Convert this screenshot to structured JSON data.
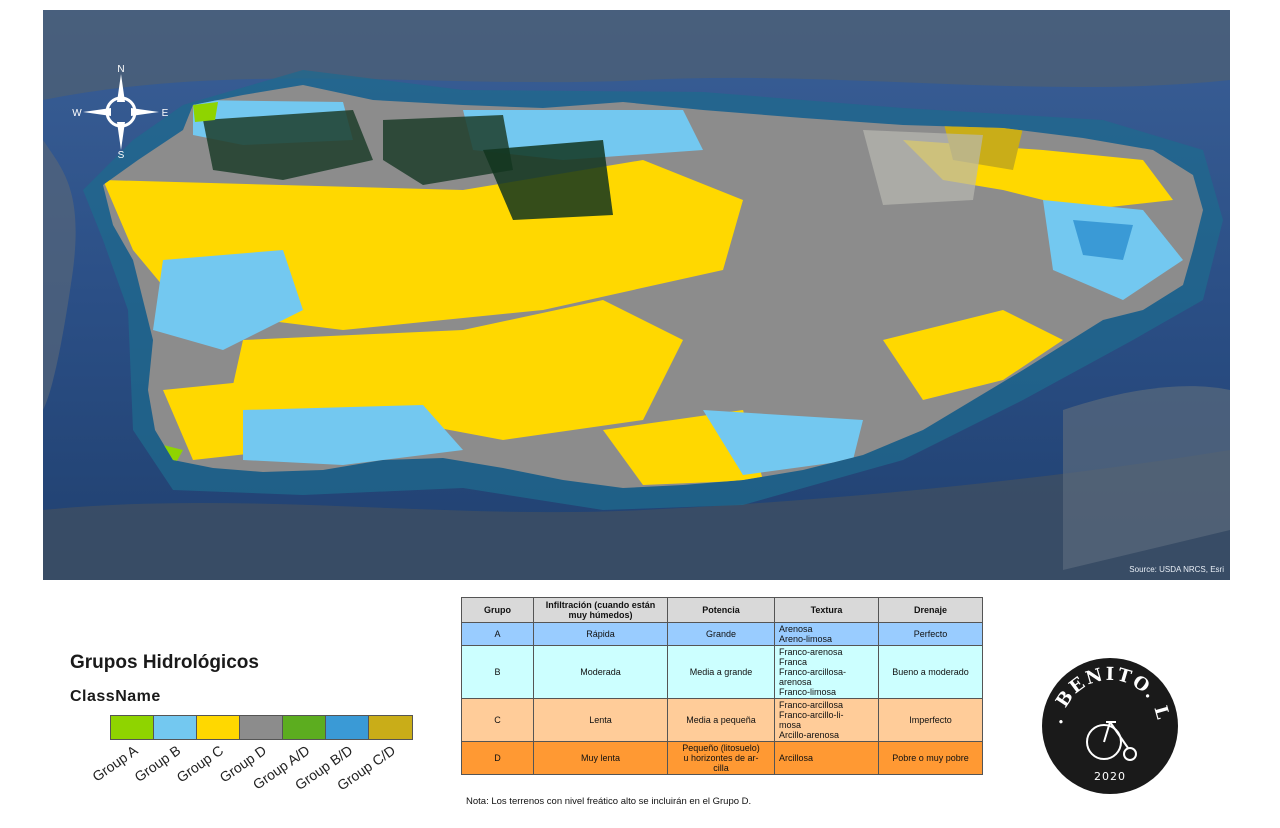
{
  "map": {
    "source": "Source: USDA NRCS, Esri",
    "compass": {
      "n": "N",
      "s": "S",
      "e": "E",
      "w": "W"
    }
  },
  "legend": {
    "title": "Grupos Hidrológicos",
    "subtitle": "ClassName",
    "items": [
      {
        "label": "Group A",
        "color": "#8fd400"
      },
      {
        "label": "Group B",
        "color": "#73c8f0"
      },
      {
        "label": "Group C",
        "color": "#ffd800"
      },
      {
        "label": "Group D",
        "color": "#8c8c8c"
      },
      {
        "label": "Group A/D",
        "color": "#5cad1f"
      },
      {
        "label": "Group B/D",
        "color": "#3a9ad6"
      },
      {
        "label": "Group C/D",
        "color": "#c9ad18"
      }
    ]
  },
  "table": {
    "headers": [
      "Grupo",
      "Infiltración (cuando están muy húmedos)",
      "Potencia",
      "Textura",
      "Drenaje"
    ],
    "rows": [
      {
        "grupo": "A",
        "infiltracion": "Rápida",
        "potencia": "Grande",
        "textura": "Arenosa\nAreno-limosa",
        "drenaje": "Perfecto",
        "color": "#99ccff"
      },
      {
        "grupo": "B",
        "infiltracion": "Moderada",
        "potencia": "Media a grande",
        "textura": "Franco-arenosa\nFranca\nFranco-arcillosa-\narenosa\nFranco-limosa",
        "drenaje": "Bueno a moderado",
        "color": "#ccffff"
      },
      {
        "grupo": "C",
        "infiltracion": "Lenta",
        "potencia": "Media a pequeña",
        "textura": "Franco-arcillosa\nFranco-arcillo-li-\nmosa\nArcillo-arenosa",
        "drenaje": "Imperfecto",
        "color": "#ffcc99"
      },
      {
        "grupo": "D",
        "infiltracion": "Muy lenta",
        "potencia": "Pequeño (litosuelo)\nu horizontes de ar-\ncilla",
        "textura": "Arcillosa",
        "drenaje": "Pobre o muy pobre",
        "color": "#ff9933"
      }
    ],
    "note": "Nota: Los terrenos con nivel freático alto se incluirán en el Grupo D."
  },
  "logo": {
    "text": "ST. BENITO. LLC",
    "year": "2020"
  }
}
